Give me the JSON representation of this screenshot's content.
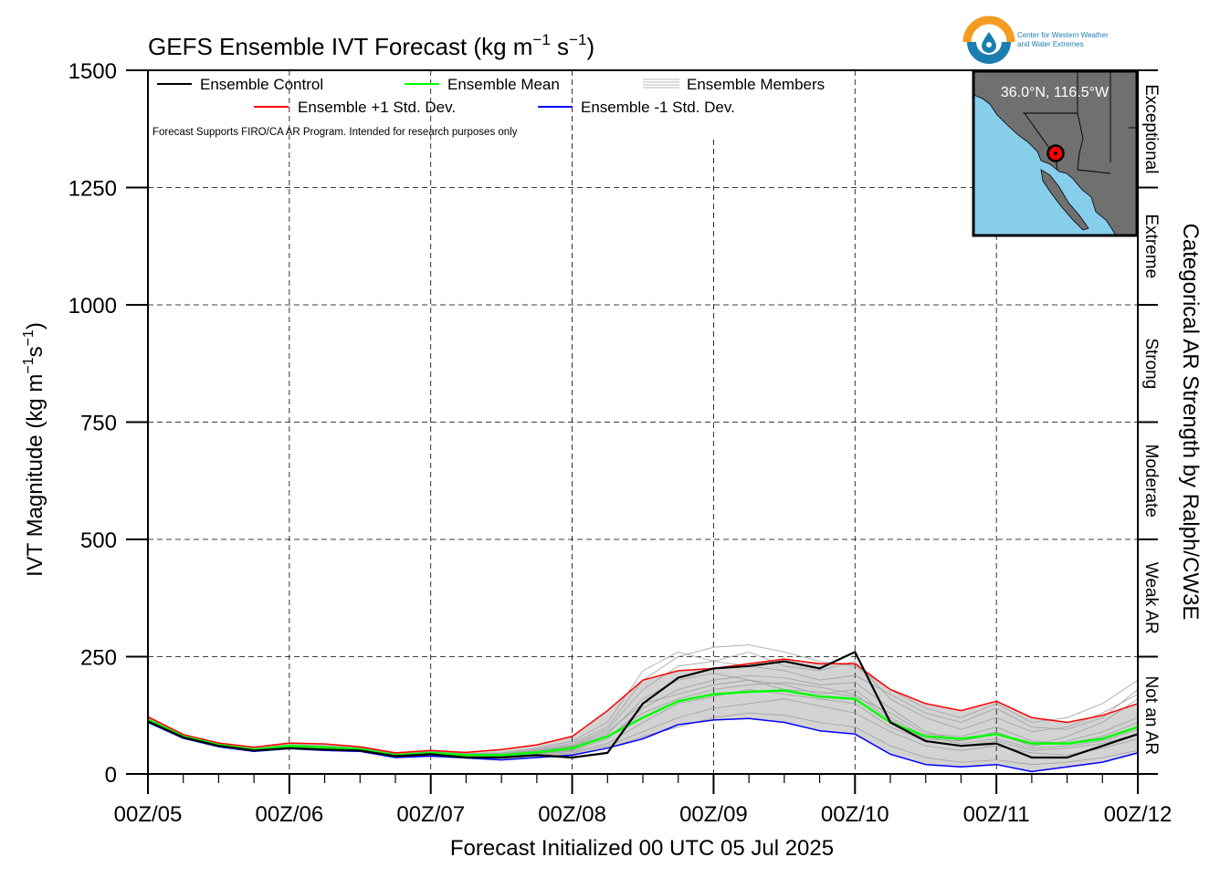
{
  "title_main": "GEFS Ensemble IVT Forecast (kg m",
  "title_sup1": "−1",
  "title_mid": " s",
  "title_sup2": "−1",
  "title_end": ")",
  "ylabel_main": "IVT Magnitude (kg m",
  "ylabel_sup1": "−1",
  "ylabel_mid": "s",
  "ylabel_sup2": "−1",
  "ylabel_end": ")",
  "xlabel": "Forecast Initialized 00 UTC 05 Jul 2025",
  "right_label": "Categorical AR Strength by Ralph/CW3E",
  "disclaimer": "Forecast Supports FIRO/CA AR Program. Intended for research purposes only",
  "legend": {
    "control": "Ensemble Control",
    "mean": "Ensemble Mean",
    "members": "Ensemble Members",
    "plus": "Ensemble +1 Std. Dev.",
    "minus": "Ensemble -1 Std. Dev."
  },
  "location": "36.0°N, 116.5°W",
  "logo": {
    "line1": "Center for Western Weather",
    "line2": "and Water Extremes"
  },
  "categories": [
    "Not an AR",
    "Weak AR",
    "Moderate",
    "Strong",
    "Extreme",
    "Exceptional"
  ],
  "colors": {
    "control": "#000000",
    "mean": "#00ff00",
    "plus": "#ff0000",
    "minus": "#0000ff",
    "members": "#a0a0a0",
    "spread": "#d3d3d3",
    "ocean": "#87ceeb",
    "land": "#707070",
    "logo_orange": "#f39c1f",
    "logo_blue": "#1a7fb0"
  },
  "chart_data": {
    "type": "line",
    "x_unit": "hours since 00Z/05",
    "x_ticks": [
      "00Z/05",
      "00Z/06",
      "00Z/07",
      "00Z/08",
      "00Z/09",
      "00Z/10",
      "00Z/11",
      "00Z/12"
    ],
    "xlim": [
      0,
      168
    ],
    "ylim": [
      0,
      1500
    ],
    "y_ticks": [
      0,
      250,
      500,
      750,
      1000,
      1250,
      1500
    ],
    "grid": true,
    "legend_position": "top",
    "x": [
      0,
      6,
      12,
      18,
      24,
      30,
      36,
      42,
      48,
      54,
      60,
      66,
      72,
      78,
      84,
      90,
      96,
      102,
      108,
      114,
      120,
      126,
      132,
      138,
      144,
      150,
      156,
      162,
      168
    ],
    "series": [
      {
        "name": "Ensemble Control",
        "values": [
          112,
          78,
          60,
          50,
          55,
          52,
          50,
          38,
          42,
          35,
          35,
          40,
          35,
          45,
          150,
          205,
          225,
          230,
          240,
          225,
          260,
          110,
          70,
          60,
          65,
          35,
          35,
          60,
          85
        ]
      },
      {
        "name": "Ensemble Mean",
        "values": [
          116,
          80,
          62,
          52,
          60,
          57,
          53,
          40,
          45,
          40,
          40,
          46,
          55,
          80,
          120,
          155,
          170,
          175,
          178,
          165,
          160,
          110,
          80,
          75,
          85,
          65,
          65,
          75,
          100
        ]
      },
      {
        "name": "Ensemble +1 Std. Dev.",
        "values": [
          122,
          84,
          66,
          57,
          66,
          64,
          58,
          45,
          50,
          46,
          52,
          62,
          80,
          135,
          200,
          220,
          225,
          235,
          245,
          235,
          235,
          180,
          150,
          135,
          155,
          120,
          110,
          125,
          150
        ]
      },
      {
        "name": "Ensemble -1 Std. Dev.",
        "values": [
          110,
          76,
          58,
          48,
          54,
          50,
          48,
          35,
          38,
          34,
          30,
          35,
          40,
          55,
          75,
          105,
          115,
          118,
          110,
          92,
          85,
          42,
          20,
          15,
          20,
          5,
          15,
          25,
          45
        ]
      }
    ],
    "members": [
      [
        114,
        79,
        61,
        51,
        58,
        55,
        52,
        39,
        44,
        38,
        38,
        44,
        50,
        75,
        140,
        180,
        200,
        210,
        205,
        190,
        195,
        140,
        90,
        70,
        90,
        60,
        80,
        110,
        160
      ],
      [
        118,
        82,
        63,
        53,
        62,
        59,
        55,
        42,
        46,
        42,
        42,
        50,
        62,
        95,
        180,
        230,
        240,
        260,
        230,
        220,
        240,
        160,
        120,
        95,
        120,
        90,
        100,
        130,
        170
      ],
      [
        112,
        77,
        59,
        49,
        56,
        53,
        50,
        37,
        40,
        36,
        36,
        40,
        45,
        60,
        90,
        120,
        140,
        150,
        160,
        145,
        130,
        90,
        60,
        50,
        60,
        45,
        40,
        55,
        75
      ],
      [
        116,
        80,
        62,
        52,
        60,
        57,
        53,
        41,
        45,
        40,
        41,
        47,
        58,
        85,
        160,
        200,
        215,
        200,
        190,
        170,
        180,
        120,
        80,
        65,
        75,
        55,
        60,
        70,
        95
      ],
      [
        120,
        83,
        64,
        54,
        63,
        60,
        56,
        44,
        48,
        44,
        45,
        55,
        70,
        110,
        220,
        260,
        240,
        230,
        220,
        200,
        210,
        170,
        130,
        110,
        140,
        100,
        95,
        120,
        180
      ],
      [
        113,
        78,
        60,
        50,
        57,
        54,
        51,
        38,
        42,
        37,
        37,
        42,
        48,
        65,
        110,
        150,
        165,
        180,
        170,
        160,
        150,
        100,
        70,
        60,
        70,
        50,
        55,
        65,
        85
      ],
      [
        117,
        81,
        62,
        52,
        61,
        58,
        54,
        40,
        46,
        41,
        40,
        48,
        60,
        90,
        150,
        170,
        190,
        200,
        180,
        175,
        165,
        130,
        85,
        80,
        100,
        70,
        65,
        80,
        110
      ],
      [
        115,
        80,
        61,
        51,
        59,
        56,
        52,
        39,
        45,
        39,
        39,
        45,
        52,
        80,
        130,
        160,
        180,
        190,
        195,
        185,
        170,
        115,
        75,
        70,
        85,
        60,
        70,
        90,
        120
      ],
      [
        119,
        82,
        63,
        53,
        62,
        59,
        55,
        43,
        47,
        43,
        43,
        52,
        66,
        100,
        200,
        250,
        270,
        275,
        260,
        240,
        230,
        180,
        140,
        120,
        150,
        110,
        120,
        150,
        200
      ],
      [
        111,
        76,
        58,
        48,
        55,
        52,
        49,
        36,
        39,
        35,
        34,
        38,
        42,
        55,
        80,
        100,
        120,
        130,
        125,
        110,
        100,
        60,
        35,
        25,
        30,
        20,
        25,
        35,
        50
      ]
    ]
  }
}
